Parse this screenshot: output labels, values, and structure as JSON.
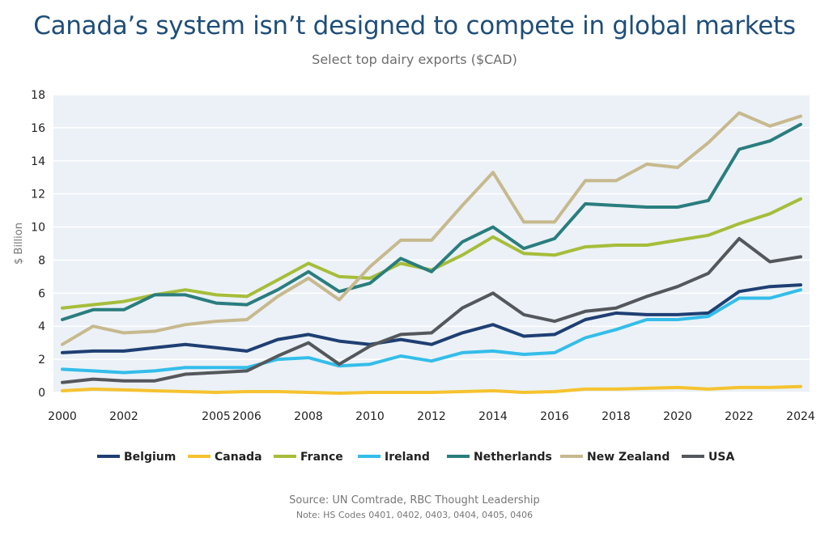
{
  "header": {
    "title": "Canada’s system isn’t designed to compete in global markets",
    "subtitle": "Select top dairy exports ($CAD)"
  },
  "footer": {
    "source": "Source: UN Comtrade, RBC Thought Leadership",
    "note": "Note: HS Codes 0401, 0402, 0403, 0404, 0405, 0406"
  },
  "chart_data": {
    "type": "line",
    "ylabel": "$ Billion",
    "xlabel": "",
    "ylim": [
      0,
      18
    ],
    "yticks": [
      0,
      2,
      4,
      6,
      8,
      10,
      12,
      14,
      16,
      18
    ],
    "xlim": [
      2000,
      2024
    ],
    "xticks": [
      2000,
      2002,
      2005,
      2006,
      2008,
      2010,
      2012,
      2014,
      2016,
      2018,
      2020,
      2022,
      2024
    ],
    "x": [
      2000,
      2001,
      2002,
      2003,
      2004,
      2005,
      2006,
      2007,
      2008,
      2009,
      2010,
      2011,
      2012,
      2013,
      2014,
      2015,
      2016,
      2017,
      2018,
      2019,
      2020,
      2021,
      2022,
      2023,
      2024
    ],
    "grid": true,
    "legend_position": "bottom",
    "series": [
      {
        "name": "Belgium",
        "color": "#1f3f73",
        "values": [
          2.4,
          2.5,
          2.5,
          2.7,
          2.9,
          2.7,
          2.5,
          3.2,
          3.5,
          3.1,
          2.9,
          3.2,
          2.9,
          3.6,
          4.1,
          3.4,
          3.5,
          4.4,
          4.8,
          4.7,
          4.7,
          4.8,
          6.1,
          6.4,
          6.5
        ]
      },
      {
        "name": "Canada",
        "color": "#f5c330",
        "values": [
          0.1,
          0.2,
          0.15,
          0.1,
          0.05,
          0.0,
          0.05,
          0.05,
          0.0,
          -0.05,
          0.0,
          0.0,
          0.0,
          0.05,
          0.1,
          0.0,
          0.05,
          0.2,
          0.2,
          0.25,
          0.3,
          0.2,
          0.3,
          0.3,
          0.35
        ]
      },
      {
        "name": "France",
        "color": "#a6bd3a",
        "values": [
          5.1,
          5.3,
          5.5,
          5.9,
          6.2,
          5.9,
          5.8,
          6.8,
          7.8,
          7.0,
          6.9,
          7.8,
          7.4,
          8.3,
          9.4,
          8.4,
          8.3,
          8.8,
          8.9,
          8.9,
          9.2,
          9.5,
          10.2,
          10.8,
          11.7
        ]
      },
      {
        "name": "Ireland",
        "color": "#34bde9",
        "values": [
          1.4,
          1.3,
          1.2,
          1.3,
          1.5,
          1.5,
          1.5,
          2.0,
          2.1,
          1.6,
          1.7,
          2.2,
          1.9,
          2.4,
          2.5,
          2.3,
          2.4,
          3.3,
          3.8,
          4.4,
          4.4,
          4.6,
          5.7,
          5.7,
          6.2
        ]
      },
      {
        "name": "Netherlands",
        "color": "#2a7d7e",
        "values": [
          4.4,
          5.0,
          5.0,
          5.9,
          5.9,
          5.4,
          5.3,
          6.2,
          7.3,
          6.1,
          6.6,
          8.1,
          7.3,
          9.1,
          10.0,
          8.7,
          9.3,
          11.4,
          11.3,
          11.2,
          11.2,
          11.6,
          14.7,
          15.2,
          16.2
        ]
      },
      {
        "name": "New Zealand",
        "color": "#c7b98e",
        "values": [
          2.9,
          4.0,
          3.6,
          3.7,
          4.1,
          4.3,
          4.4,
          5.8,
          6.9,
          5.6,
          7.6,
          9.2,
          9.2,
          11.3,
          13.3,
          10.3,
          10.3,
          12.8,
          12.8,
          13.8,
          13.6,
          15.1,
          16.9,
          16.1,
          16.7
        ]
      },
      {
        "name": "USA",
        "color": "#54585c",
        "values": [
          0.6,
          0.8,
          0.7,
          0.7,
          1.1,
          1.2,
          1.3,
          2.2,
          3.0,
          1.7,
          2.8,
          3.5,
          3.6,
          5.1,
          6.0,
          4.7,
          4.3,
          4.9,
          5.1,
          5.8,
          6.4,
          7.2,
          9.3,
          7.9,
          8.2
        ]
      }
    ]
  }
}
